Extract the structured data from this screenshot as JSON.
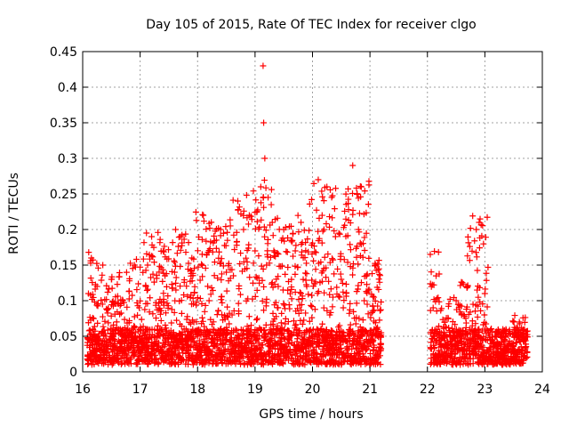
{
  "chart_data": {
    "type": "scatter",
    "title": "Day 105 of 2015, Rate Of TEC Index for receiver clgo",
    "xlabel": "GPS time / hours",
    "ylabel": "ROTI / TECUs",
    "xlim": [
      16,
      24
    ],
    "ylim": [
      0,
      0.45
    ],
    "xticks": [
      "16",
      "17",
      "18",
      "19",
      "20",
      "21",
      "22",
      "23",
      "24"
    ],
    "yticks": [
      "0",
      "0.05",
      "0.1",
      "0.15",
      "0.2",
      "0.25",
      "0.3",
      "0.35",
      "0.4",
      "0.45"
    ],
    "grid": true,
    "marker": "+",
    "color": "#ff0000",
    "series": [
      {
        "name": "ROTI",
        "x": [
          16.1,
          16.15,
          16.2,
          16.25,
          16.3,
          16.35,
          16.4,
          16.5,
          16.6,
          16.7,
          16.8,
          16.9,
          17.0,
          17.1,
          17.2,
          17.3,
          17.4,
          17.5,
          17.6,
          17.7,
          17.8,
          17.9,
          18.0,
          18.1,
          18.2,
          18.3,
          18.4,
          18.5,
          18.6,
          18.7,
          18.8,
          18.9,
          19.0,
          19.1,
          19.14,
          19.15,
          19.17,
          19.2,
          19.3,
          19.4,
          19.5,
          19.6,
          19.7,
          19.8,
          19.9,
          20.0,
          20.1,
          20.2,
          20.25,
          20.3,
          20.4,
          20.5,
          20.6,
          20.7,
          20.8,
          20.85,
          20.9,
          21.0,
          21.1,
          21.15,
          22.05,
          22.1,
          22.2,
          22.3,
          22.4,
          22.5,
          22.6,
          22.7,
          22.8,
          22.85,
          22.9,
          23.0,
          23.1,
          23.2,
          23.3,
          23.4,
          23.5,
          23.6,
          23.7
        ],
        "y": [
          0.11,
          0.16,
          0.03,
          0.12,
          0.02,
          0.15,
          0.05,
          0.13,
          0.03,
          0.1,
          0.04,
          0.15,
          0.03,
          0.12,
          0.19,
          0.05,
          0.17,
          0.03,
          0.14,
          0.19,
          0.06,
          0.16,
          0.05,
          0.22,
          0.1,
          0.04,
          0.2,
          0.14,
          0.08,
          0.24,
          0.2,
          0.22,
          0.17,
          0.26,
          0.43,
          0.35,
          0.3,
          0.15,
          0.21,
          0.09,
          0.2,
          0.05,
          0.17,
          0.21,
          0.12,
          0.04,
          0.27,
          0.2,
          0.26,
          0.08,
          0.19,
          0.13,
          0.03,
          0.29,
          0.2,
          0.26,
          0.1,
          0.04,
          0.15,
          0.02,
          0.165,
          0.09,
          0.03,
          0.07,
          0.02,
          0.1,
          0.04,
          0.12,
          0.03,
          0.2,
          0.21,
          0.06,
          0.02,
          0.05,
          0.01,
          0.04,
          0.02,
          0.07,
          0.03
        ]
      }
    ]
  }
}
